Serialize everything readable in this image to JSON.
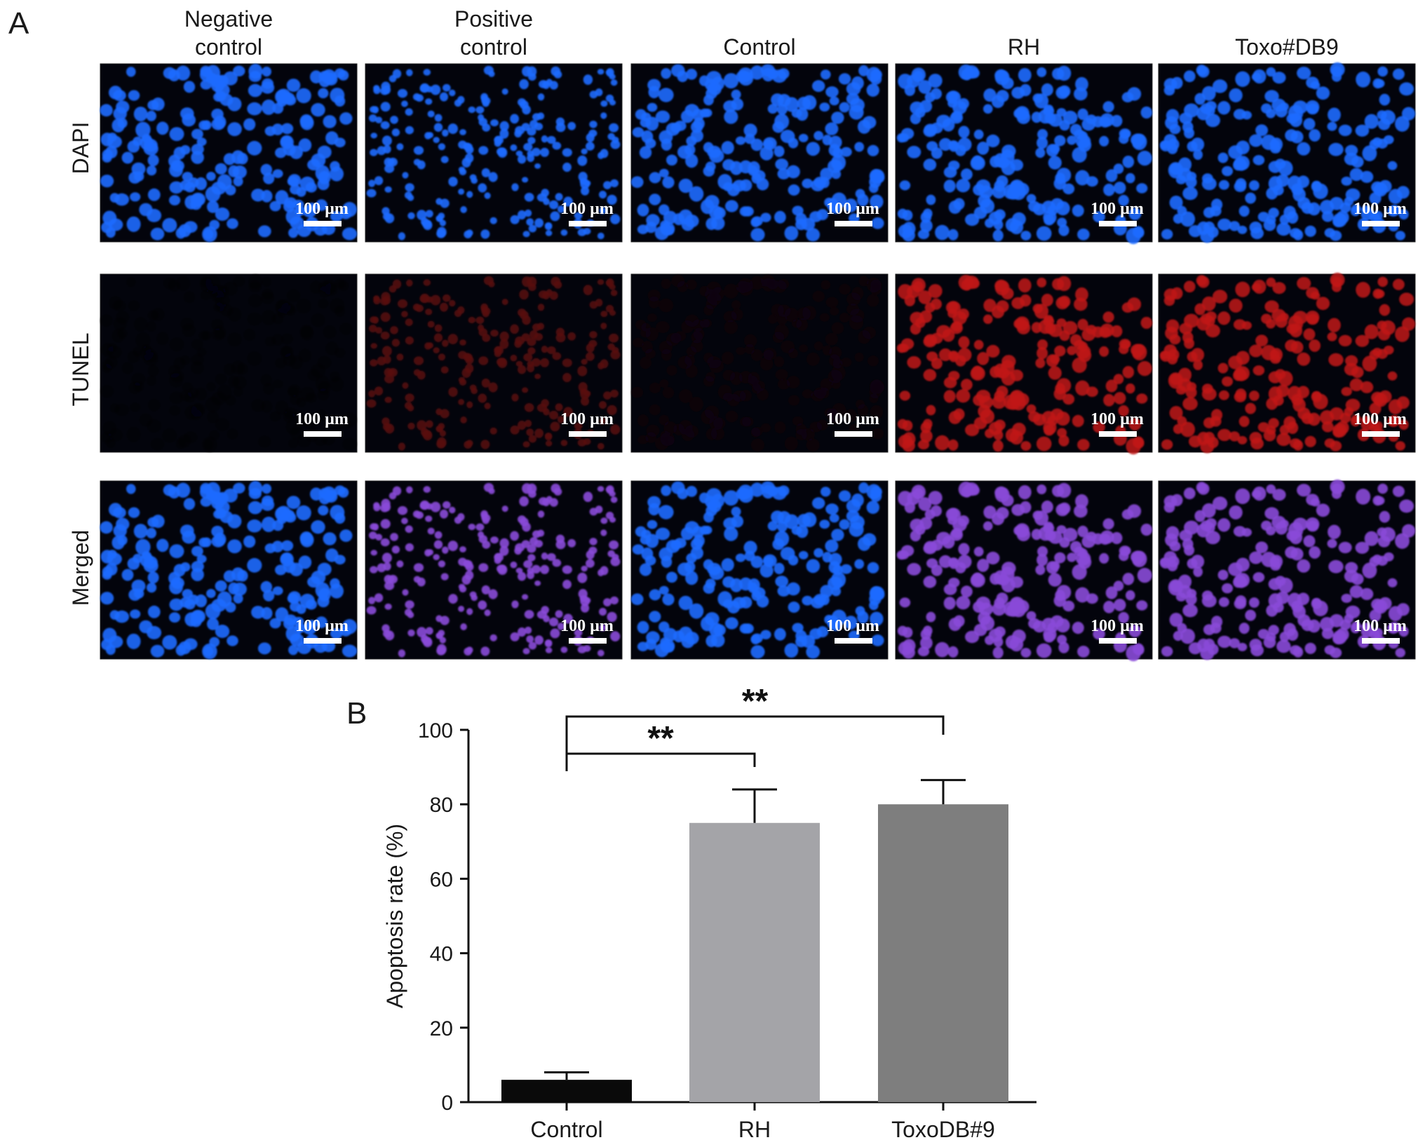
{
  "panel_a": {
    "label": "A",
    "columns": [
      {
        "title": [
          "Negative",
          "control"
        ]
      },
      {
        "title": [
          "Positive",
          "control"
        ]
      },
      {
        "title": [
          "Control"
        ]
      },
      {
        "title": [
          "RH"
        ]
      },
      {
        "title": [
          "Toxo#DB9"
        ]
      }
    ],
    "rows": [
      {
        "label": "DAPI",
        "stain": "dapi"
      },
      {
        "label": "TUNEL",
        "stain": "tunel"
      },
      {
        "label": "Merged",
        "stain": "merged"
      }
    ],
    "scale_bar_label": "100 µm",
    "tunel_intensity": [
      0.02,
      0.45,
      0.08,
      1.0,
      1.0
    ],
    "colors": {
      "dapi": "#1e6bff",
      "tunel": "#c01818",
      "merged": "#8a4ad8",
      "background": "#03040c"
    }
  },
  "panel_b": {
    "label": "B",
    "significance": [
      {
        "pair": [
          "Control",
          "RH"
        ],
        "label": "**"
      },
      {
        "pair": [
          "Control",
          "ToxoDB#9"
        ],
        "label": "**"
      }
    ]
  },
  "chart_data": {
    "type": "bar",
    "categories": [
      "Control",
      "RH",
      "ToxoDB#9"
    ],
    "values": [
      6,
      75,
      80
    ],
    "errors": [
      2,
      9,
      6.5
    ],
    "bar_colors": [
      "#0a0a0a",
      "#a4a4a8",
      "#7e7e7e"
    ],
    "ylabel": "Apoptosis rate (%)",
    "ylim": [
      0,
      100
    ],
    "yticks": [
      0,
      20,
      40,
      60,
      80,
      100
    ],
    "grid": false
  }
}
